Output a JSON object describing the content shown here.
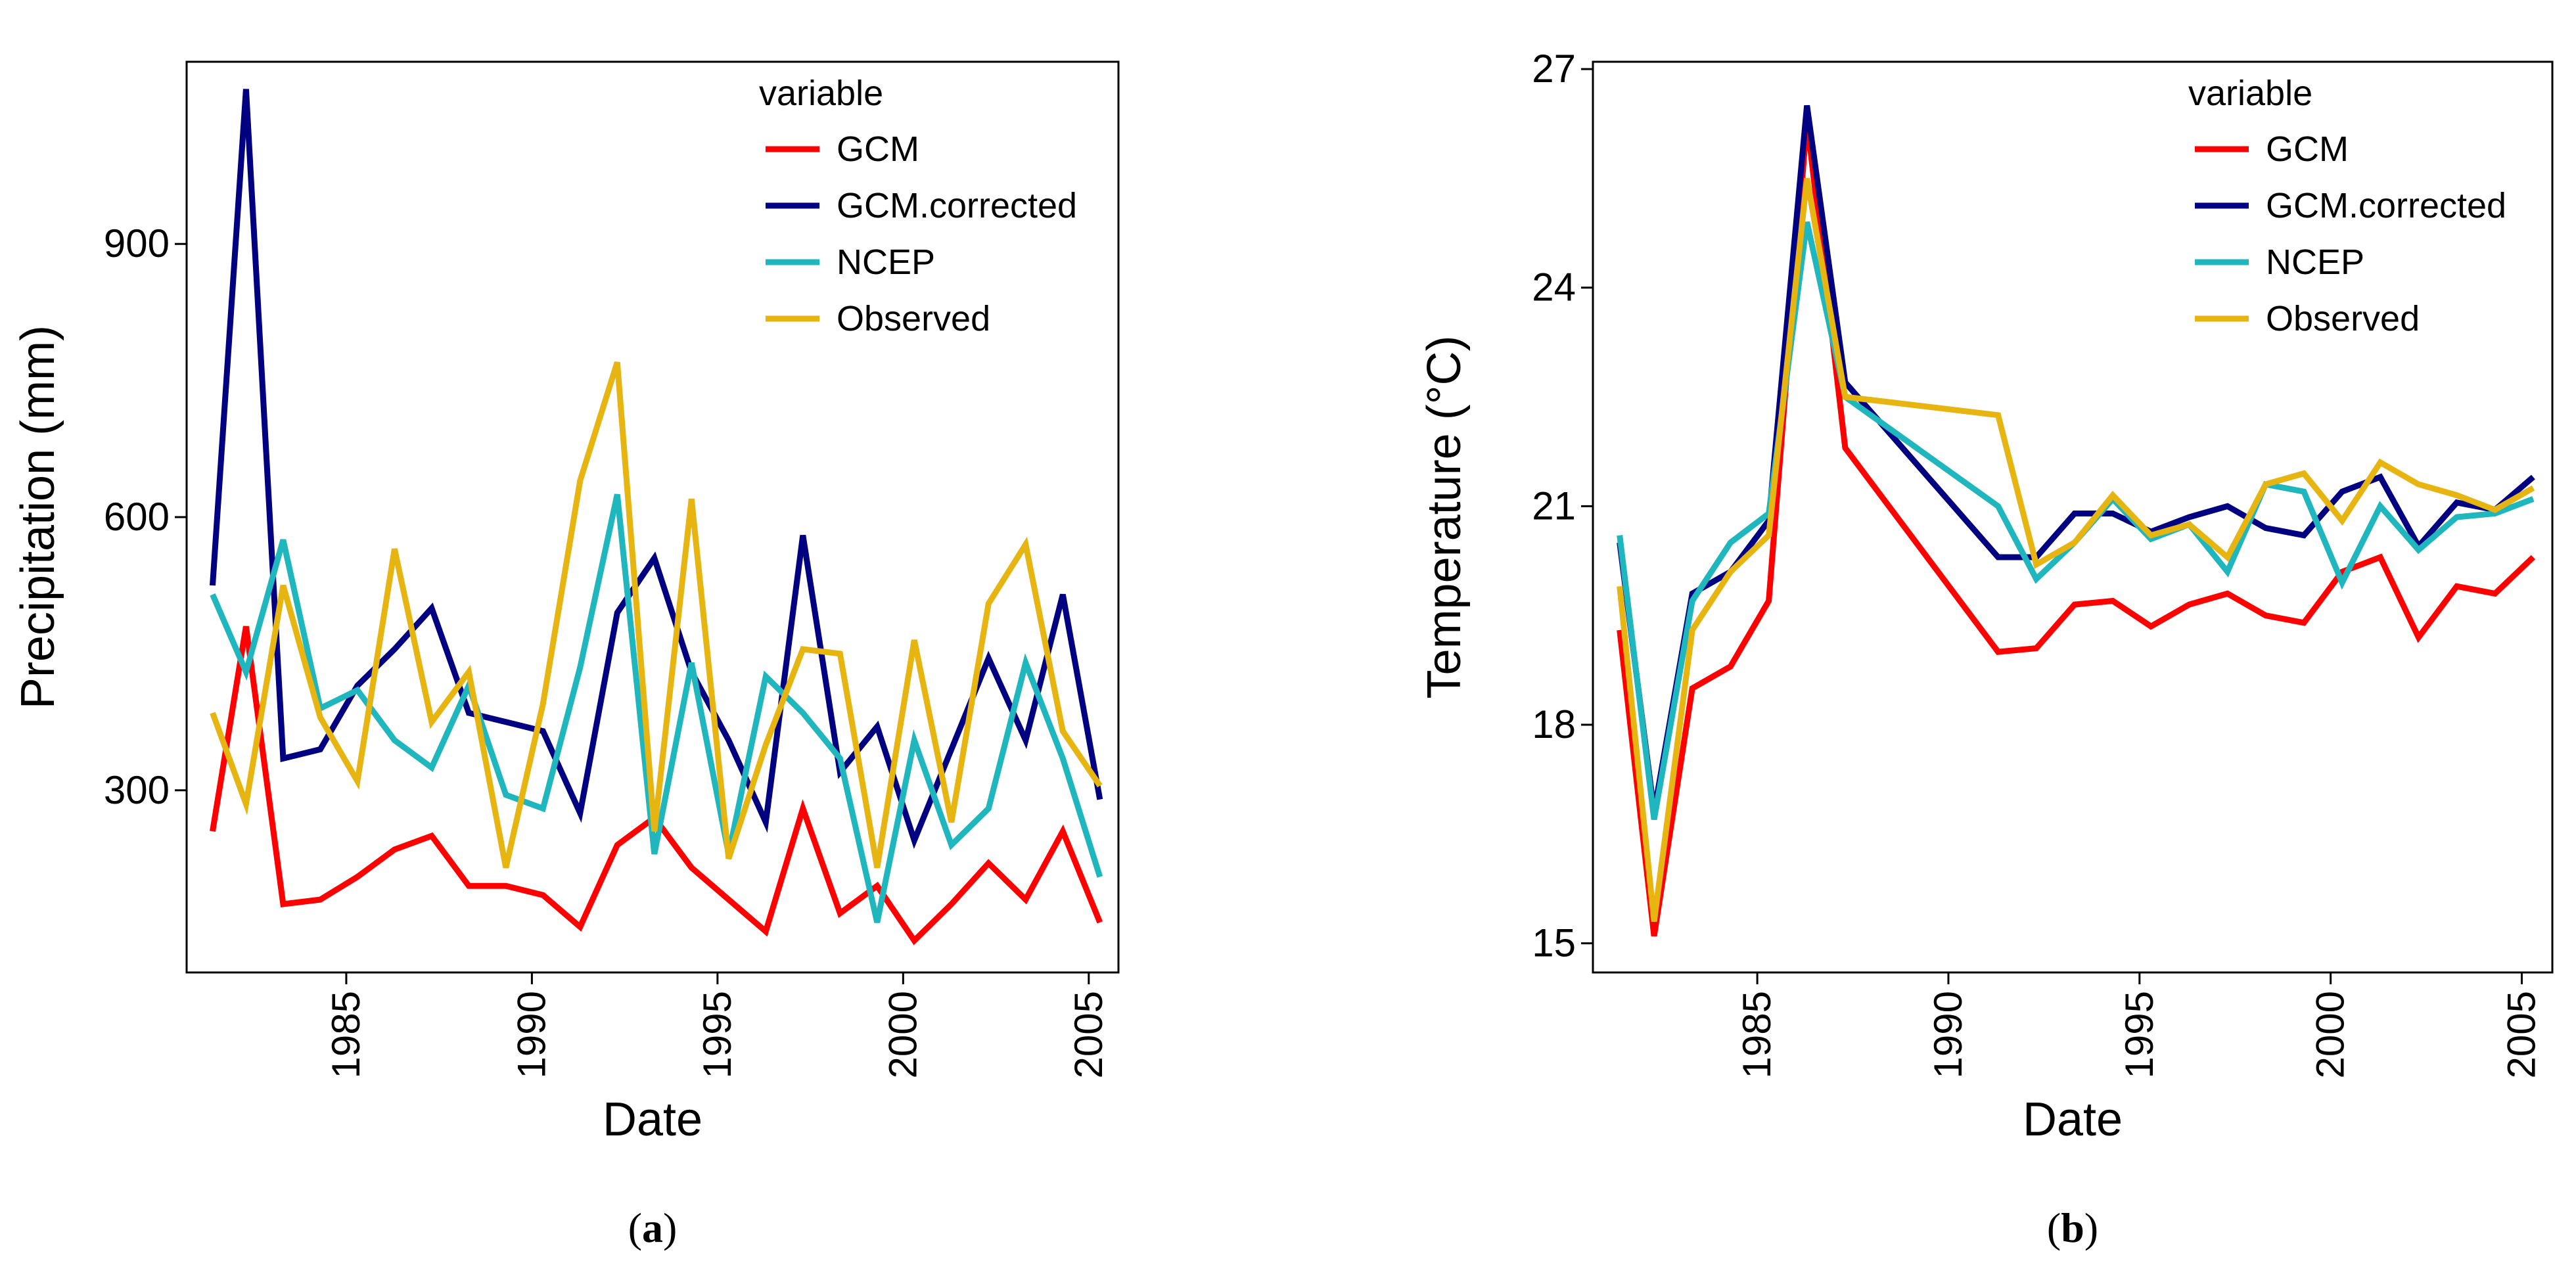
{
  "chart_data": [
    {
      "type": "line",
      "caption": "a",
      "xlabel": "Date",
      "ylabel": "Precipitation (mm)",
      "xlim": [
        1980.7,
        2005.8
      ],
      "ylim": [
        100,
        1100
      ],
      "xticks": [
        1985,
        1990,
        1995,
        2000,
        2005
      ],
      "xtick_labels": [
        "1985",
        "1990",
        "1995",
        "2000",
        "2005"
      ],
      "yticks": [
        300,
        600,
        900
      ],
      "ytick_labels": [
        "300",
        "600",
        "900"
      ],
      "legend_title": "variable",
      "x": [
        1981.4,
        1982.3,
        1983.3,
        1984.3,
        1985.3,
        1986.3,
        1987.3,
        1988.3,
        1989.3,
        1990.3,
        1991.3,
        1992.3,
        1993.3,
        1994.3,
        1995.3,
        1996.3,
        1997.3,
        1998.3,
        1999.3,
        2000.3,
        2001.3,
        2002.3,
        2003.3,
        2004.3,
        2005.3
      ],
      "series": [
        {
          "name": "GCM",
          "color": "#ff0000",
          "values": [
            255,
            480,
            175,
            180,
            205,
            235,
            250,
            195,
            195,
            185,
            150,
            240,
            270,
            215,
            180,
            145,
            280,
            165,
            195,
            135,
            175,
            220,
            180,
            255,
            155
          ]
        },
        {
          "name": "GCM.corrected",
          "color": "#000080",
          "values": [
            525,
            1070,
            335,
            345,
            415,
            455,
            500,
            385,
            375,
            365,
            275,
            495,
            555,
            430,
            355,
            265,
            580,
            320,
            370,
            245,
            345,
            445,
            355,
            515,
            290
          ]
        },
        {
          "name": "NCEP",
          "color": "#1fb6bd",
          "values": [
            515,
            430,
            575,
            390,
            410,
            355,
            325,
            415,
            295,
            280,
            435,
            625,
            230,
            440,
            230,
            425,
            385,
            335,
            155,
            355,
            240,
            280,
            440,
            335,
            205
          ]
        },
        {
          "name": "Observed",
          "color": "#e6b511",
          "values": [
            385,
            285,
            525,
            380,
            310,
            565,
            375,
            430,
            215,
            395,
            640,
            770,
            255,
            620,
            225,
            350,
            455,
            450,
            215,
            465,
            265,
            505,
            570,
            365,
            305
          ]
        }
      ]
    },
    {
      "type": "line",
      "caption": "b",
      "xlabel": "Date",
      "ylabel": "Temperature (°C)",
      "xlim": [
        1980.7,
        2005.8
      ],
      "ylim": [
        14.6,
        27.1
      ],
      "xticks": [
        1985,
        1990,
        1995,
        2000,
        2005
      ],
      "xtick_labels": [
        "1985",
        "1990",
        "1995",
        "2000",
        "2005"
      ],
      "yticks": [
        15,
        18,
        21,
        24,
        27
      ],
      "ytick_labels": [
        "15",
        "18",
        "21",
        "24",
        "27"
      ],
      "legend_title": "variable",
      "x": [
        1981.4,
        1982.3,
        1983.3,
        1984.3,
        1985.3,
        1986.3,
        1987.3,
        1991.3,
        1992.3,
        1993.3,
        1994.3,
        1995.3,
        1996.3,
        1997.3,
        1998.3,
        1999.3,
        2000.3,
        2001.3,
        2002.3,
        2003.3,
        2004.3,
        2005.3
      ],
      "series": [
        {
          "name": "GCM",
          "color": "#ff0000",
          "values": [
            19.3,
            15.1,
            18.5,
            18.8,
            19.7,
            26.3,
            21.8,
            19.0,
            19.05,
            19.65,
            19.7,
            19.35,
            19.65,
            19.8,
            19.5,
            19.4,
            20.1,
            20.3,
            19.2,
            19.9,
            19.8,
            20.3
          ]
        },
        {
          "name": "GCM.corrected",
          "color": "#000080",
          "values": [
            20.5,
            16.8,
            19.8,
            20.1,
            20.8,
            26.5,
            22.7,
            20.3,
            20.3,
            20.9,
            20.9,
            20.65,
            20.85,
            21.0,
            20.7,
            20.6,
            21.2,
            21.4,
            20.45,
            21.05,
            20.95,
            21.4
          ]
        },
        {
          "name": "NCEP",
          "color": "#1fb6bd",
          "values": [
            20.6,
            16.7,
            19.7,
            20.5,
            20.9,
            24.9,
            22.5,
            21.0,
            20.0,
            20.5,
            21.1,
            20.55,
            20.75,
            20.1,
            21.3,
            21.2,
            19.95,
            21.0,
            20.4,
            20.85,
            20.9,
            21.1
          ]
        },
        {
          "name": "Observed",
          "color": "#e6b511",
          "values": [
            19.9,
            15.3,
            19.3,
            20.1,
            20.6,
            25.5,
            22.5,
            22.25,
            20.2,
            20.5,
            21.15,
            20.6,
            20.75,
            20.3,
            21.3,
            21.45,
            20.8,
            21.6,
            21.3,
            21.15,
            20.95,
            21.25
          ]
        }
      ]
    }
  ]
}
